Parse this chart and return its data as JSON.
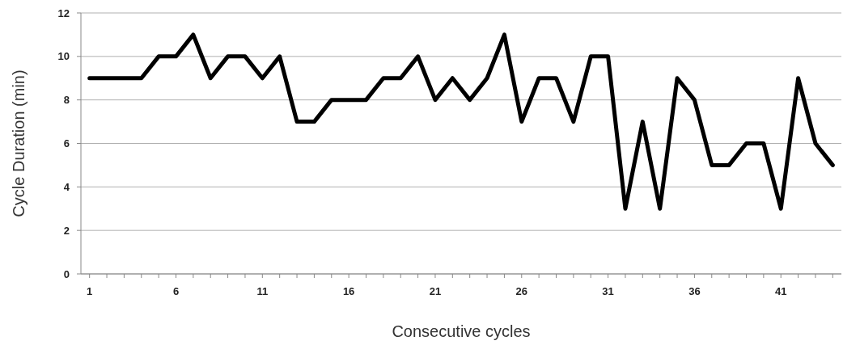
{
  "chart_data": {
    "type": "line",
    "xlabel": "Consecutive cycles",
    "ylabel": "Cycle Duration (min)",
    "categories": [
      "1",
      null,
      null,
      null,
      null,
      "6",
      null,
      null,
      null,
      null,
      "11",
      null,
      null,
      null,
      null,
      "16",
      null,
      null,
      null,
      null,
      "21",
      null,
      null,
      null,
      null,
      "26",
      null,
      null,
      null,
      null,
      "31",
      null,
      null,
      null,
      null,
      "36",
      null,
      null,
      null,
      null,
      "41",
      null,
      null,
      null
    ],
    "series": [
      {
        "color": "#000000",
        "values": [
          9,
          9,
          9,
          9,
          10,
          10,
          11,
          9,
          10,
          10,
          9,
          10,
          7,
          7,
          8,
          8,
          8,
          9,
          9,
          10,
          8,
          9,
          8,
          9,
          11,
          7,
          9,
          9,
          7,
          10,
          10,
          3,
          7,
          3,
          9,
          8,
          5,
          5,
          6,
          6,
          3,
          9,
          6,
          5
        ]
      }
    ],
    "ylim": [
      0,
      12
    ],
    "yticks": [
      0,
      2,
      4,
      6,
      8,
      10,
      12
    ],
    "grid": "y",
    "marker": "none",
    "line_style": "solid"
  }
}
